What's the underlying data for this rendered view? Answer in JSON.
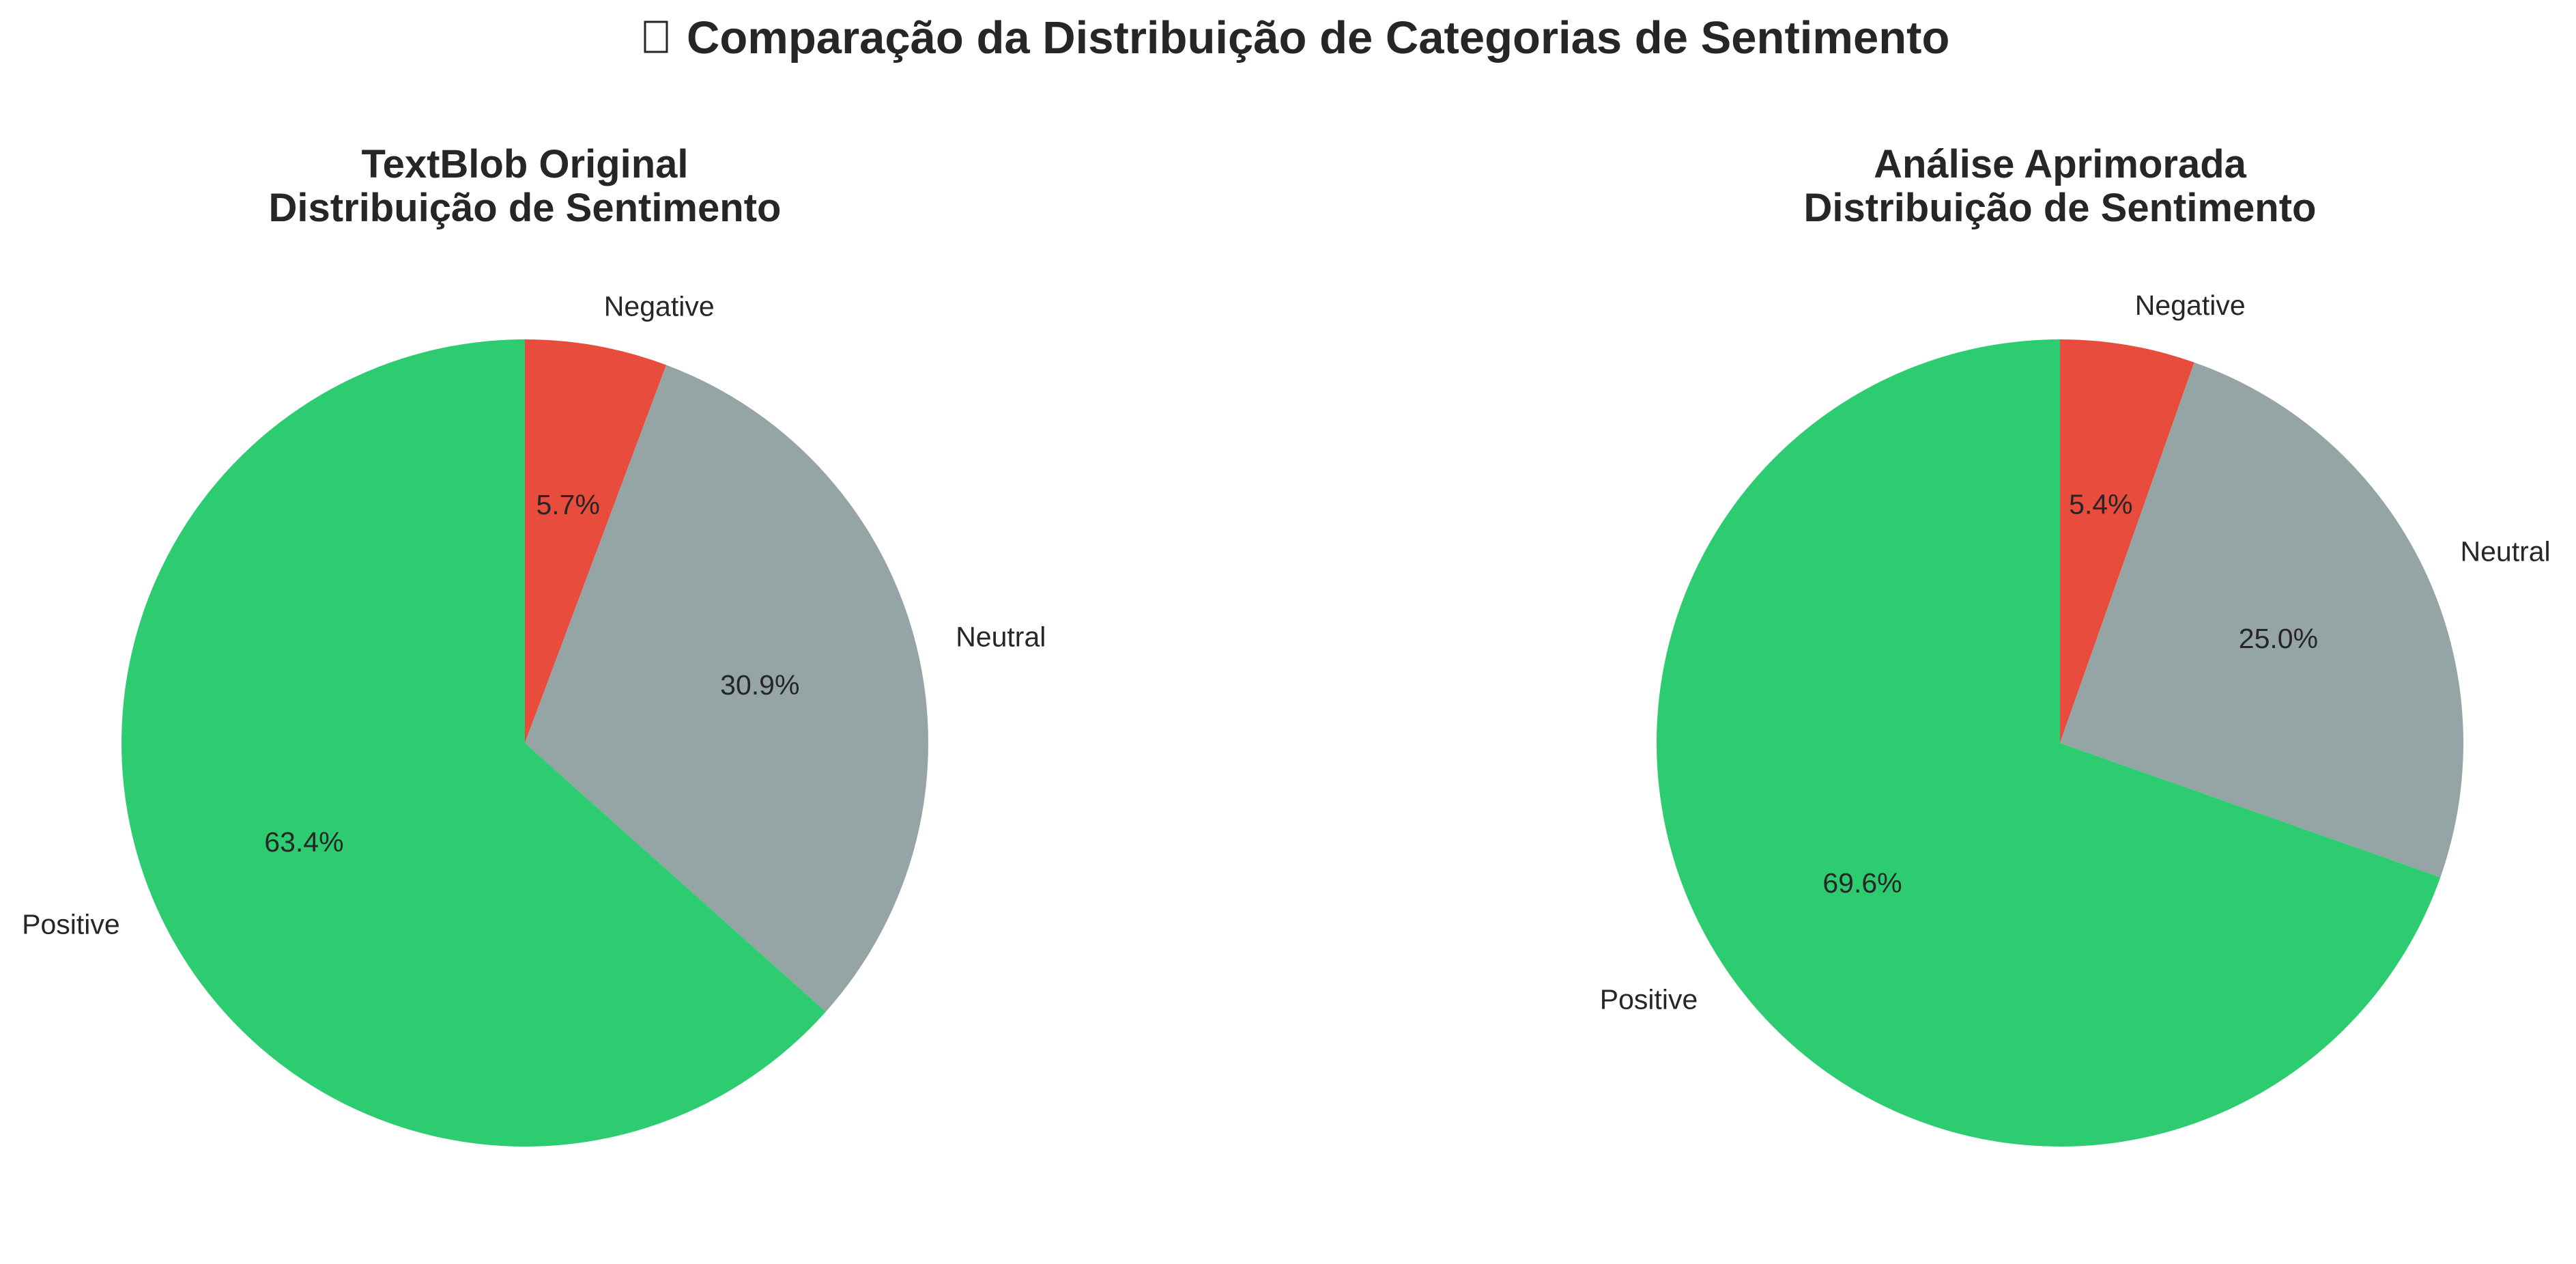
{
  "figure": {
    "suptitle_icon": "missing-glyph-icon",
    "suptitle": "Comparação da Distribuição de Categorias de Sentimento"
  },
  "colors": {
    "Positive": "#2ecc71",
    "Neutral": "#95a5a6",
    "Negative": "#e74c3c"
  },
  "chart_data": [
    {
      "type": "pie",
      "title": [
        "TextBlob Original",
        "Distribuição de Sentimento"
      ],
      "categories": [
        "Negative",
        "Neutral",
        "Positive"
      ],
      "values": [
        5.7,
        30.9,
        63.4
      ],
      "value_labels": [
        "5.7%",
        "30.9%",
        "63.4%"
      ],
      "start_angle": 90,
      "direction": "clockwise",
      "legend": "none"
    },
    {
      "type": "pie",
      "title": [
        "Análise Aprimorada",
        "Distribuição de Sentimento"
      ],
      "categories": [
        "Negative",
        "Neutral",
        "Positive"
      ],
      "values": [
        5.4,
        25.0,
        69.6
      ],
      "value_labels": [
        "5.4%",
        "25.0%",
        "69.6%"
      ],
      "start_angle": 90,
      "direction": "clockwise",
      "legend": "none"
    }
  ]
}
